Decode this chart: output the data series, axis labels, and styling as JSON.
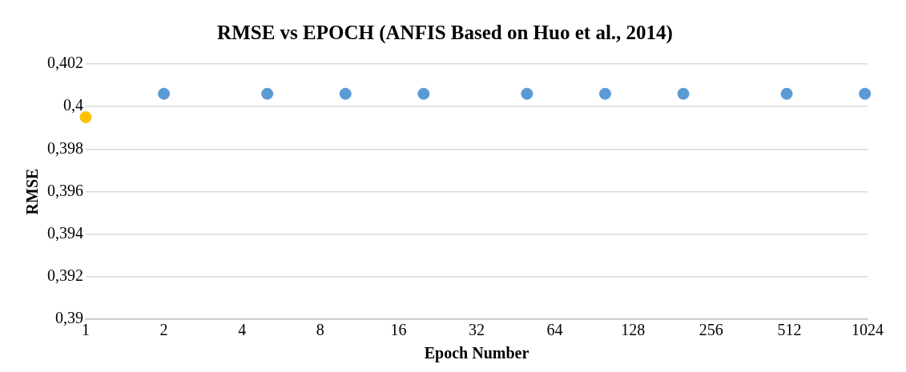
{
  "chart_data": {
    "type": "scatter",
    "title": "RMSE vs EPOCH (ANFIS Based on Huo et al., 2014)",
    "xlabel": "Epoch Number",
    "ylabel": "RMSE",
    "x": [
      1,
      2,
      5,
      10,
      20,
      50,
      100,
      200,
      500,
      1000
    ],
    "values": [
      0.3995,
      0.4006,
      0.4006,
      0.4006,
      0.4006,
      0.4006,
      0.4006,
      0.4006,
      0.4006,
      0.4006
    ],
    "colors": [
      "#ffc000",
      "#5b9bd5",
      "#5b9bd5",
      "#5b9bd5",
      "#5b9bd5",
      "#5b9bd5",
      "#5b9bd5",
      "#5b9bd5",
      "#5b9bd5",
      "#5b9bd5"
    ],
    "log": "x",
    "xlim": [
      1,
      1024
    ],
    "xticks": [
      1,
      2,
      4,
      8,
      16,
      32,
      64,
      128,
      256,
      512,
      1024
    ],
    "ylim": [
      0.39,
      0.402
    ],
    "yticks": [
      {
        "value": 0.39,
        "label": "0,39"
      },
      {
        "value": 0.392,
        "label": "0,392"
      },
      {
        "value": 0.394,
        "label": "0,394"
      },
      {
        "value": 0.396,
        "label": "0,396"
      },
      {
        "value": 0.398,
        "label": "0,398"
      },
      {
        "value": 0.4,
        "label": "0,4"
      },
      {
        "value": 0.402,
        "label": "0,402"
      }
    ],
    "grid": "y",
    "legend": false,
    "marker": "circle"
  }
}
